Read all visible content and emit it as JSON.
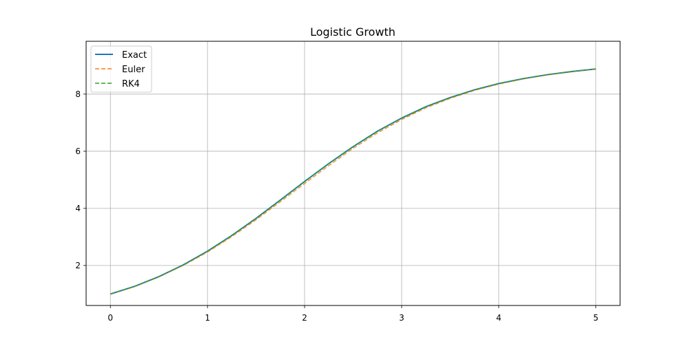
{
  "chart_data": {
    "type": "line",
    "title": "Logistic Growth",
    "xlabel": "",
    "ylabel": "",
    "xlim": [
      -0.25,
      5.25
    ],
    "ylim": [
      0.6,
      9.85
    ],
    "xticks": [
      0,
      1,
      2,
      3,
      4,
      5
    ],
    "yticks": [
      2,
      4,
      6,
      8
    ],
    "grid": true,
    "legend": "top-left",
    "x": [
      0,
      0.25,
      0.5,
      0.75,
      1,
      1.25,
      1.5,
      1.75,
      2,
      2.25,
      2.5,
      2.75,
      3,
      3.25,
      3.5,
      3.75,
      4,
      4.25,
      4.5,
      4.75,
      5
    ],
    "series": [
      {
        "name": "Exact",
        "color": "#1f77b4",
        "style": "solid",
        "values": [
          1.0,
          1.27,
          1.61,
          2.02,
          2.5,
          3.05,
          3.65,
          4.29,
          4.94,
          5.57,
          6.16,
          6.7,
          7.16,
          7.56,
          7.88,
          8.15,
          8.37,
          8.54,
          8.68,
          8.79,
          8.88
        ]
      },
      {
        "name": "Euler",
        "color": "#ff7f0e",
        "style": "dashed",
        "values": [
          1.0,
          1.26,
          1.6,
          2.0,
          2.47,
          3.01,
          3.6,
          4.23,
          4.87,
          5.5,
          6.1,
          6.64,
          7.11,
          7.52,
          7.85,
          8.13,
          8.35,
          8.53,
          8.67,
          8.78,
          8.88
        ]
      },
      {
        "name": "RK4",
        "color": "#2ca02c",
        "style": "dashed",
        "values": [
          1.0,
          1.27,
          1.61,
          2.02,
          2.5,
          3.05,
          3.65,
          4.29,
          4.94,
          5.57,
          6.16,
          6.7,
          7.16,
          7.56,
          7.88,
          8.15,
          8.37,
          8.54,
          8.68,
          8.79,
          8.88
        ]
      }
    ]
  }
}
